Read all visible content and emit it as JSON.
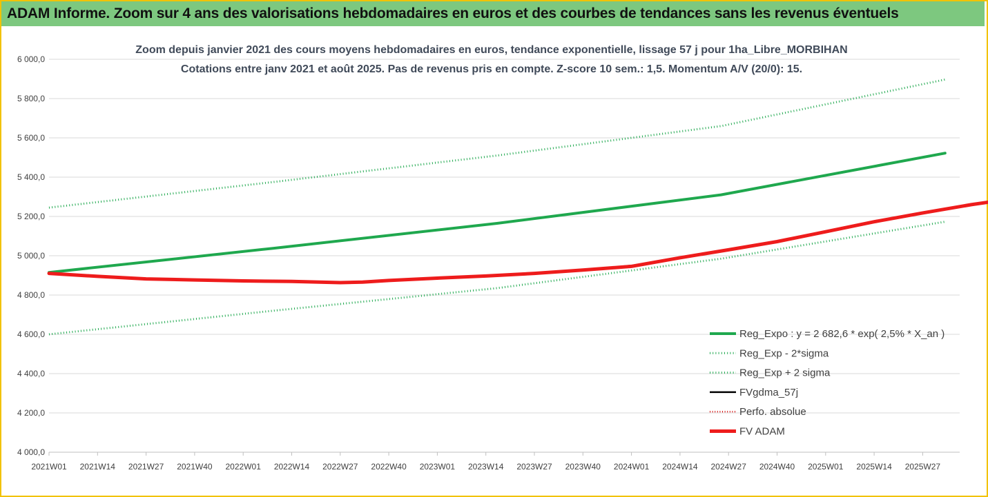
{
  "banner": {
    "title": "ADAM Informe. Zoom sur 4 ans des valorisations hebdomadaires en euros et des courbes de tendances sans les revenus éventuels"
  },
  "colors": {
    "trend": "#1fa84e",
    "fvgdma": "#000000",
    "fvadam": "#ee1c1c",
    "perfo": "#d41010",
    "grid": "#d9d9d9",
    "banner": "#7dc87f",
    "frame": "#f2c200"
  },
  "chart_data": {
    "type": "line",
    "title_line1": "Zoom depuis janvier 2021 des cours moyens hebdomadaires en euros, tendance exponentielle, lissage 57 j pour 1ha_Libre_MORBIHAN",
    "title_line2": "Cotations entre janv 2021 et août 2025. Pas de revenus pris en compte. Z-score 10 sem.: 1,5. Momentum A/V (20/0): 15.",
    "xlabel": "",
    "ylabel": "",
    "ylim": [
      4000,
      6000
    ],
    "yticks": [
      "6 000,0",
      "5 800,0",
      "5 600,0",
      "5 400,0",
      "5 200,0",
      "5 000,0",
      "4 800,0",
      "4 600,0",
      "4 400,0",
      "4 200,0",
      "4 000,0"
    ],
    "ytick_values": [
      6000,
      5800,
      5600,
      5400,
      5200,
      5000,
      4800,
      4600,
      4400,
      4200,
      4000
    ],
    "xticks": [
      "2021W01",
      "2021W14",
      "2021W27",
      "2021W40",
      "2022W01",
      "2022W14",
      "2022W27",
      "2022W40",
      "2023W01",
      "2023W14",
      "2023W27",
      "2023W40",
      "2024W01",
      "2024W14",
      "2024W27",
      "2024W40",
      "2025W01",
      "2025W14",
      "2025W27"
    ],
    "weeks_between_ticks": 13,
    "total_weeks": 240,
    "grid": "horizontal",
    "legend_position": "bottom-right",
    "series": [
      {
        "name": "Reg_Expo : y = 2 682,6 * exp( 2,5% *  X_an )",
        "style": "solid-thick",
        "points": [
          [
            0,
            4915
          ],
          [
            60,
            5038
          ],
          [
            120,
            5165
          ],
          [
            180,
            5310
          ],
          [
            240,
            5522
          ]
        ]
      },
      {
        "name": "Reg_Exp - 2*sigma",
        "style": "dotted",
        "points": [
          [
            0,
            4600
          ],
          [
            60,
            4720
          ],
          [
            120,
            4835
          ],
          [
            180,
            4985
          ],
          [
            240,
            5173
          ]
        ]
      },
      {
        "name": "Reg_Exp + 2 sigma",
        "style": "dotted",
        "points": [
          [
            0,
            5245
          ],
          [
            60,
            5375
          ],
          [
            120,
            5510
          ],
          [
            180,
            5660
          ],
          [
            240,
            5897
          ]
        ]
      },
      {
        "name": "FVgdma_57j",
        "style": "solid",
        "points": [
          [
            0,
            4910
          ],
          [
            13,
            4895
          ],
          [
            26,
            4882
          ],
          [
            39,
            4877
          ],
          [
            52,
            4872
          ],
          [
            65,
            4869
          ],
          [
            78,
            4863
          ],
          [
            84,
            4866
          ],
          [
            91,
            4874
          ],
          [
            104,
            4886
          ],
          [
            117,
            4897
          ],
          [
            130,
            4910
          ],
          [
            143,
            4927
          ],
          [
            156,
            4950
          ],
          [
            169,
            4990
          ],
          [
            182,
            5030
          ],
          [
            195,
            5072
          ],
          [
            208,
            5122
          ],
          [
            221,
            5173
          ],
          [
            234,
            5218
          ],
          [
            247,
            5260
          ],
          [
            260,
            5296
          ],
          [
            273,
            5322
          ],
          [
            284,
            5338
          ]
        ]
      },
      {
        "name": "Perfo. absolue",
        "style": "dotted",
        "points": []
      },
      {
        "name": "FV ADAM",
        "style": "solid-thicker",
        "points": [
          [
            0,
            4910
          ],
          [
            13,
            4895
          ],
          [
            26,
            4882
          ],
          [
            39,
            4877
          ],
          [
            52,
            4872
          ],
          [
            65,
            4869
          ],
          [
            78,
            4863
          ],
          [
            84,
            4866
          ],
          [
            91,
            4874
          ],
          [
            104,
            4886
          ],
          [
            117,
            4897
          ],
          [
            130,
            4910
          ],
          [
            143,
            4927
          ],
          [
            156,
            4946
          ],
          [
            169,
            4990
          ],
          [
            182,
            5030
          ],
          [
            195,
            5072
          ],
          [
            208,
            5122
          ],
          [
            221,
            5173
          ],
          [
            234,
            5218
          ],
          [
            247,
            5260
          ],
          [
            260,
            5296
          ],
          [
            273,
            5322
          ],
          [
            284,
            5338
          ]
        ]
      }
    ]
  }
}
